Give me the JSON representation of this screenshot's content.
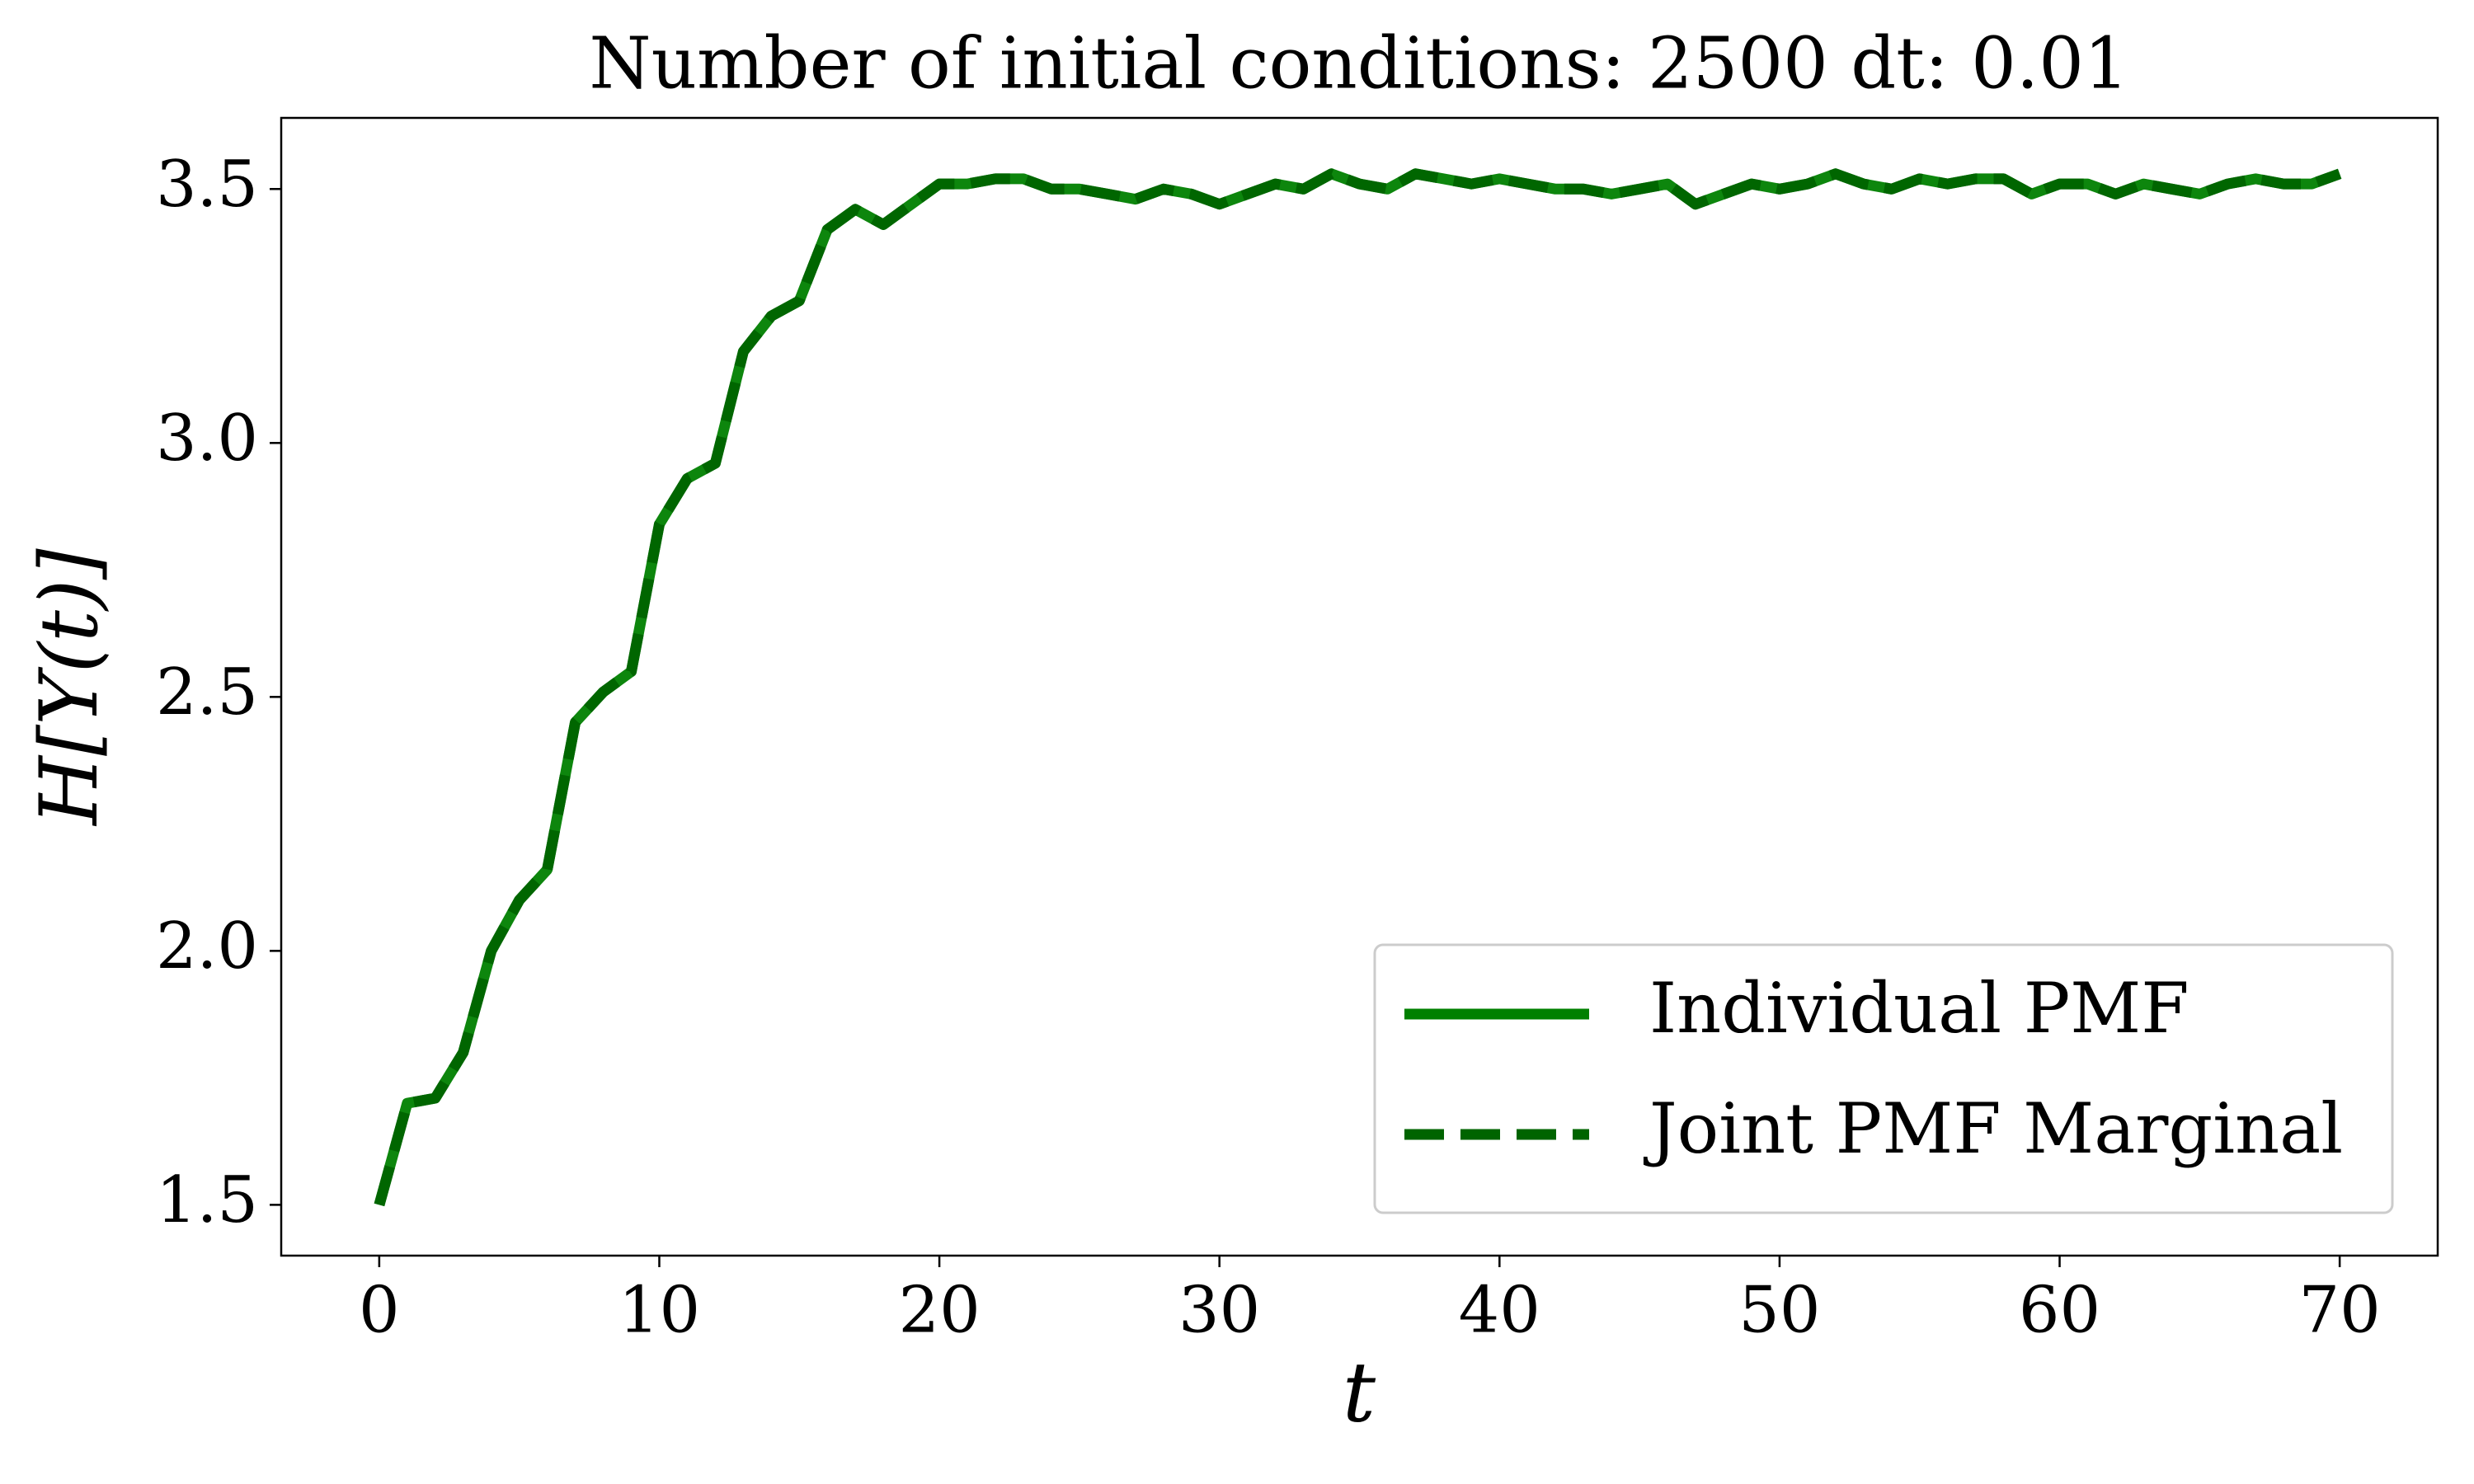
{
  "chart_data": {
    "type": "line",
    "title": "Number of initial conditions: 2500 dt: 0.01",
    "x_label": "t",
    "y_label": "H[Y(t)]",
    "x": [
      0,
      1,
      2,
      3,
      4,
      5,
      6,
      7,
      8,
      9,
      10,
      11,
      12,
      13,
      14,
      15,
      16,
      17,
      18,
      19,
      20,
      21,
      22,
      23,
      24,
      25,
      26,
      27,
      28,
      29,
      30,
      31,
      32,
      33,
      34,
      35,
      36,
      37,
      38,
      39,
      40,
      41,
      42,
      43,
      44,
      45,
      46,
      47,
      48,
      49,
      50,
      51,
      52,
      53,
      54,
      55,
      56,
      57,
      58,
      59,
      60,
      61,
      62,
      63,
      64,
      65,
      66,
      67,
      68,
      69,
      70
    ],
    "series": [
      {
        "name": "Individual PMF",
        "color": "#008000",
        "dash": false,
        "values": [
          1.5,
          1.7,
          1.71,
          1.8,
          2.0,
          2.1,
          2.16,
          2.45,
          2.51,
          2.55,
          2.84,
          2.93,
          2.96,
          3.18,
          3.25,
          3.28,
          3.42,
          3.46,
          3.43,
          3.47,
          3.51,
          3.51,
          3.52,
          3.52,
          3.5,
          3.5,
          3.49,
          3.48,
          3.5,
          3.49,
          3.47,
          3.49,
          3.51,
          3.5,
          3.53,
          3.51,
          3.5,
          3.53,
          3.52,
          3.51,
          3.52,
          3.51,
          3.5,
          3.5,
          3.49,
          3.5,
          3.51,
          3.47,
          3.49,
          3.51,
          3.5,
          3.51,
          3.53,
          3.51,
          3.5,
          3.52,
          3.51,
          3.52,
          3.52,
          3.49,
          3.51,
          3.51,
          3.49,
          3.51,
          3.5,
          3.49,
          3.51,
          3.52,
          3.51,
          3.51,
          3.53
        ]
      },
      {
        "name": "Joint PMF Marginal",
        "color": "#006400",
        "dash": true,
        "values": [
          1.5,
          1.7,
          1.71,
          1.8,
          2.0,
          2.1,
          2.16,
          2.45,
          2.51,
          2.55,
          2.84,
          2.93,
          2.96,
          3.18,
          3.25,
          3.28,
          3.42,
          3.46,
          3.43,
          3.47,
          3.51,
          3.51,
          3.52,
          3.52,
          3.5,
          3.5,
          3.49,
          3.48,
          3.5,
          3.49,
          3.47,
          3.49,
          3.51,
          3.5,
          3.53,
          3.51,
          3.5,
          3.53,
          3.52,
          3.51,
          3.52,
          3.51,
          3.5,
          3.5,
          3.49,
          3.5,
          3.51,
          3.47,
          3.49,
          3.51,
          3.5,
          3.51,
          3.53,
          3.51,
          3.5,
          3.52,
          3.51,
          3.52,
          3.52,
          3.49,
          3.51,
          3.51,
          3.49,
          3.51,
          3.5,
          3.49,
          3.51,
          3.52,
          3.51,
          3.51,
          3.53
        ]
      }
    ],
    "xlim": [
      -3.5,
      73.5
    ],
    "xticks": [
      0,
      10,
      20,
      30,
      40,
      50,
      60,
      70
    ],
    "ylim": [
      1.4,
      3.64
    ],
    "yticks": [
      1.5,
      {
        "value": 2.0,
        "label": "2.0"
      },
      2.5,
      {
        "value": 3.0,
        "label": "3.0"
      },
      3.5
    ],
    "grid": false,
    "legend": "lower right"
  }
}
